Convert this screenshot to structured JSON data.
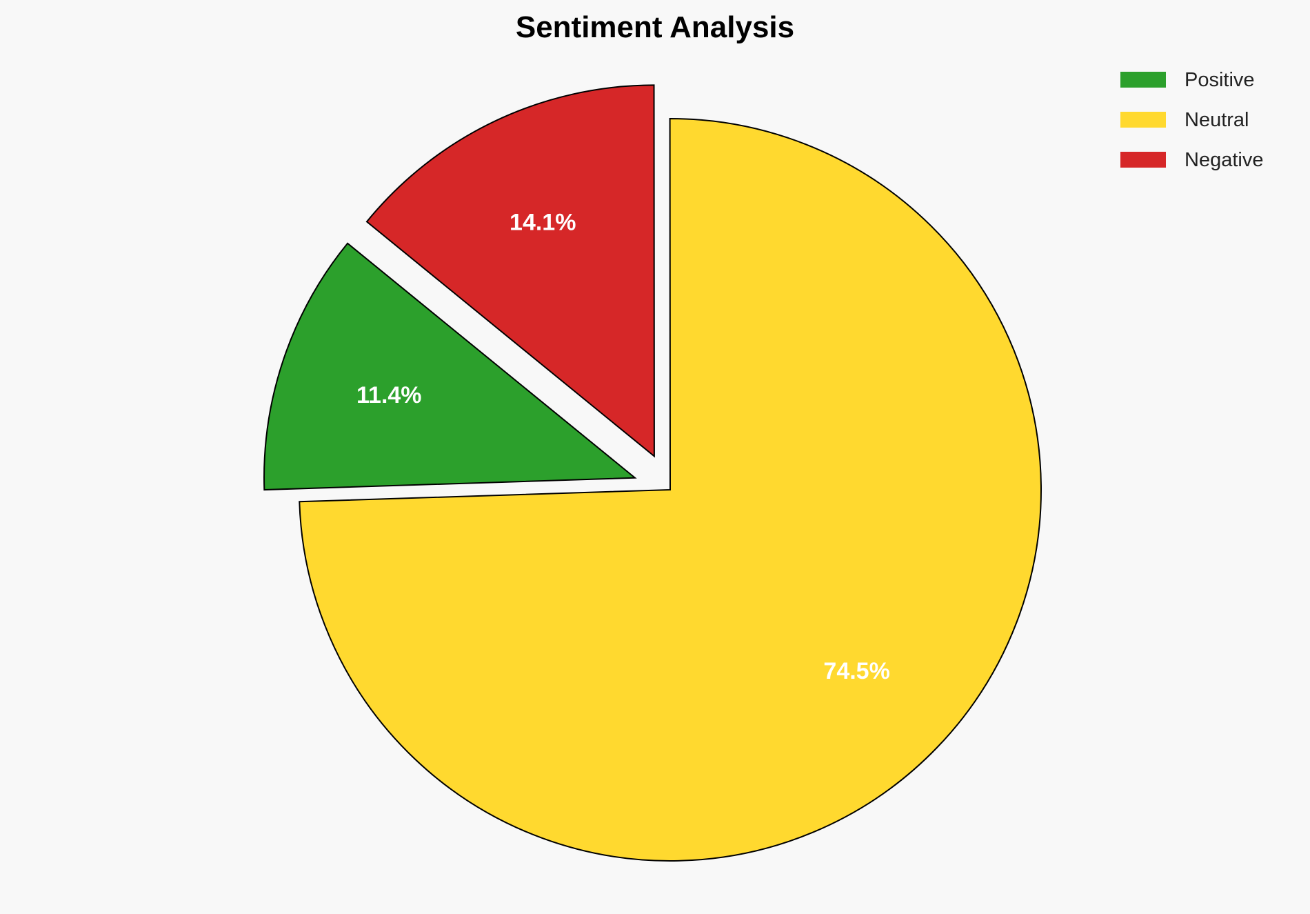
{
  "chart_data": {
    "type": "pie",
    "title": "Sentiment Analysis",
    "categories": [
      "Positive",
      "Neutral",
      "Negative"
    ],
    "values": [
      11.4,
      74.5,
      14.1
    ],
    "labels": [
      "11.4%",
      "74.5%",
      "14.1%"
    ],
    "colors": [
      "#2ca02c",
      "#ffd92f",
      "#d62728"
    ],
    "explode": [
      0.1,
      0,
      0.1
    ],
    "legend_position": "top-right",
    "background": "#f8f8f8"
  }
}
